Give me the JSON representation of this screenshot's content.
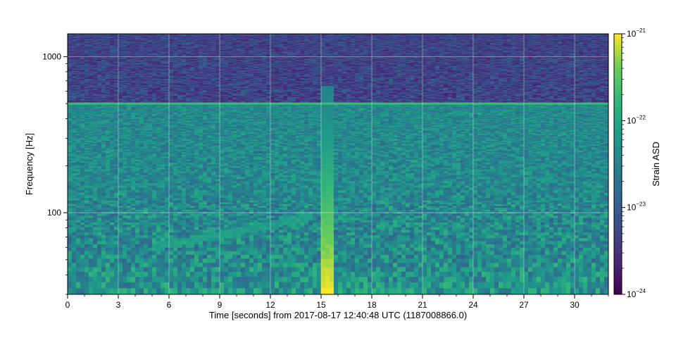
{
  "chart_data": {
    "type": "heatmap",
    "title": "",
    "xlabel": "Time [seconds] from 2017-08-17 12:40:48 UTC (1187008866.0)",
    "ylabel": "Frequency [Hz]",
    "xlim": [
      0,
      32
    ],
    "ylim": [
      30,
      1400
    ],
    "yscale": "log",
    "xticks": [
      0,
      3,
      6,
      9,
      12,
      15,
      18,
      21,
      24,
      27,
      30
    ],
    "xtick_labels": [
      "0",
      "3",
      "6",
      "9",
      "12",
      "15",
      "18",
      "21",
      "24",
      "27",
      "30"
    ],
    "yticks": [
      100,
      1000
    ],
    "ytick_labels": [
      "100",
      "1000"
    ],
    "grid": true,
    "colormap": "viridis",
    "colorbar": {
      "label": "Strain ASD",
      "scale": "log",
      "range": [
        1e-24,
        1e-21
      ],
      "ticks": [
        {
          "value": 1e-24,
          "base": "10",
          "exp": "−24"
        },
        {
          "value": 1e-23,
          "base": "10",
          "exp": "−23"
        },
        {
          "value": 1e-22,
          "base": "10",
          "exp": "−22"
        },
        {
          "value": 1e-21,
          "base": "10",
          "exp": "−21"
        }
      ]
    },
    "features": [
      {
        "kind": "broadband_glitch",
        "t_start": 15.0,
        "t_end": 15.75,
        "f_low": 30,
        "f_high": 650,
        "asd_peak": 1e-21,
        "asd_top": 3e-23
      },
      {
        "kind": "narrow_line",
        "frequency": 500,
        "asd": 2e-22
      },
      {
        "kind": "chirp",
        "points": [
          [
            5.0,
            60
          ],
          [
            9.0,
            72
          ],
          [
            12.0,
            84
          ],
          [
            14.5,
            95
          ]
        ],
        "asd": 8e-23
      },
      {
        "kind": "background",
        "f_low_band": [
          30,
          500
        ],
        "asd_low_band": 4e-23,
        "f_high_band": [
          500,
          1400
        ],
        "asd_high_band": 5e-24
      }
    ]
  }
}
